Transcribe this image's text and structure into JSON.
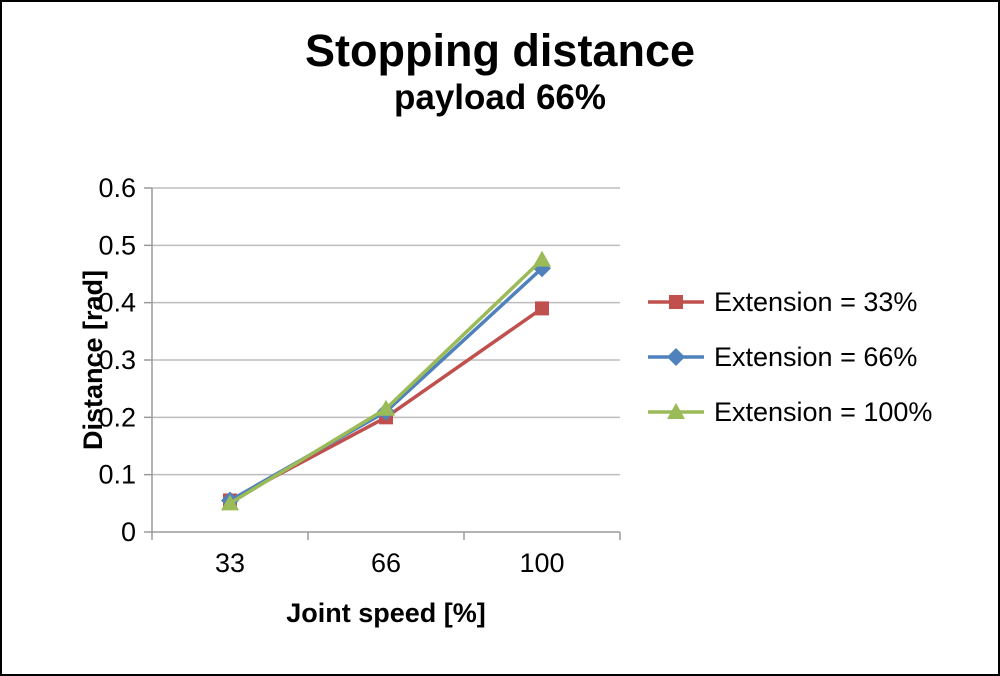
{
  "chart_data": {
    "type": "line",
    "title": "Stopping distance",
    "subtitle": "payload 66%",
    "xlabel": "Joint speed [%]",
    "ylabel": "Distance [rad]",
    "categories": [
      "33",
      "66",
      "100"
    ],
    "series": [
      {
        "name": "Extension = 33%",
        "marker": "square",
        "color": "#c0504d",
        "values": [
          0.055,
          0.2,
          0.39
        ]
      },
      {
        "name": "Extension = 66%",
        "marker": "diamond",
        "color": "#4f81bd",
        "values": [
          0.055,
          0.21,
          0.46
        ]
      },
      {
        "name": "Extension = 100%",
        "marker": "triangle",
        "color": "#9bbb59",
        "values": [
          0.05,
          0.215,
          0.475
        ]
      }
    ],
    "ylim": [
      0,
      0.6
    ],
    "ytick_step": 0.1,
    "yticks": [
      "0",
      "0.1",
      "0.2",
      "0.3",
      "0.4",
      "0.5",
      "0.6"
    ],
    "grid": true,
    "legend_position": "right"
  },
  "colors": {
    "background": "#ffffff",
    "border": "#000000",
    "gridline": "#bdbdbd",
    "axis": "#9a9a9a",
    "text": "#000000"
  }
}
